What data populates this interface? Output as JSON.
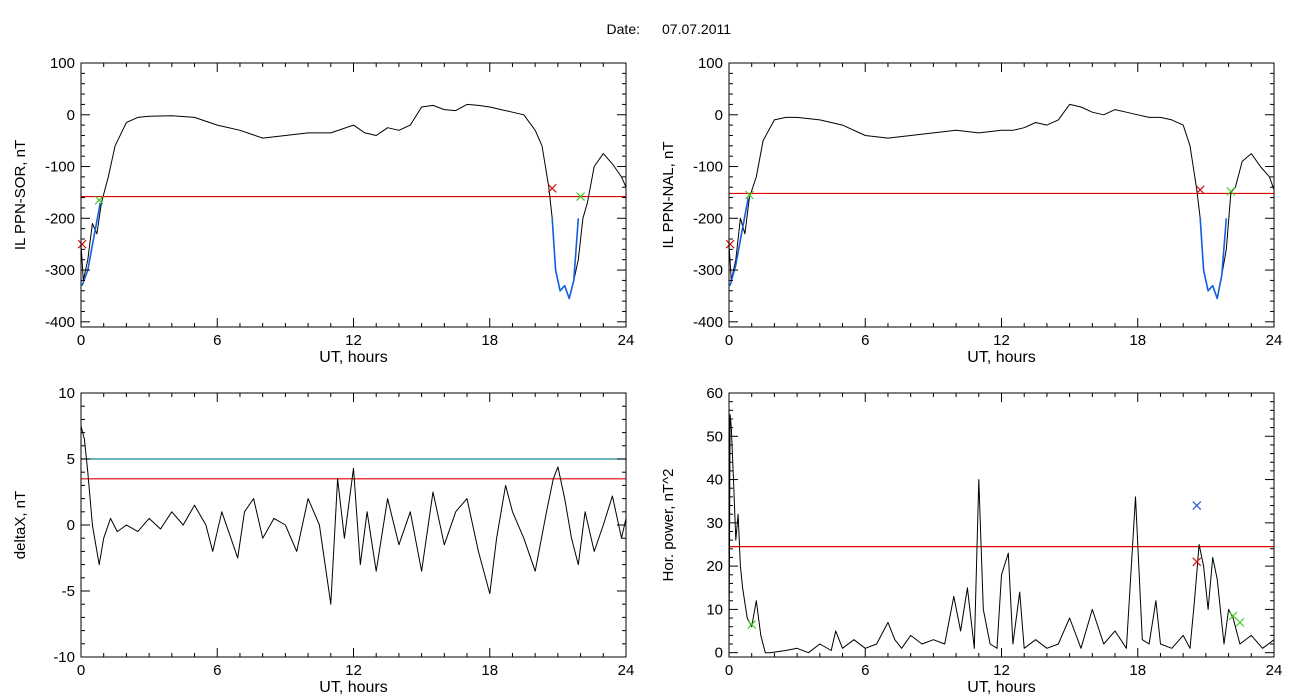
{
  "header": {
    "date_label": "Date:",
    "date_value": "07.07.2011"
  },
  "colors": {
    "trace": "#000000",
    "threshold": "#e00000",
    "teal_line": "#138a8a",
    "interval": "#1060e0",
    "marker_red": "#cc1111",
    "marker_green": "#44cc22",
    "marker_blue": "#2255dd"
  },
  "chart_data": [
    {
      "id": "top-left",
      "type": "line",
      "title": "",
      "xlabel": "UT, hours",
      "ylabel": "IL PPN-SOR, nT",
      "xlim": [
        0,
        24
      ],
      "ylim": [
        -410,
        100
      ],
      "xticks": [
        0,
        6,
        12,
        18,
        24
      ],
      "yticks": [
        -400,
        -300,
        -200,
        -100,
        0,
        100
      ],
      "grid": false,
      "series": [
        {
          "role": "trace",
          "x": [
            0,
            0.1,
            0.3,
            0.5,
            0.7,
            0.9,
            1.2,
            1.5,
            2.0,
            2.5,
            3.0,
            4.0,
            5.0,
            6.0,
            7.0,
            8.0,
            9.0,
            10.0,
            11.0,
            12.0,
            12.5,
            13.0,
            13.5,
            14.0,
            14.5,
            15.0,
            15.5,
            16.0,
            16.5,
            17.0,
            17.5,
            18.0,
            18.5,
            19.0,
            19.5,
            20.0,
            20.3,
            20.6,
            20.75,
            20.9,
            21.1,
            21.3,
            21.5,
            21.7,
            21.9,
            22.1,
            22.3,
            22.6,
            23.0,
            23.4,
            23.8,
            24.0
          ],
          "y": [
            -250,
            -320,
            -280,
            -210,
            -230,
            -170,
            -120,
            -60,
            -15,
            -5,
            -3,
            -2,
            -5,
            -20,
            -30,
            -45,
            -40,
            -35,
            -35,
            -20,
            -35,
            -40,
            -25,
            -30,
            -20,
            15,
            18,
            10,
            8,
            20,
            18,
            15,
            10,
            5,
            0,
            -30,
            -60,
            -140,
            -200,
            -300,
            -340,
            -330,
            -355,
            -320,
            -280,
            -200,
            -170,
            -100,
            -75,
            -95,
            -120,
            -140
          ]
        },
        {
          "role": "interval",
          "x": [
            0.05,
            0.3,
            0.55,
            0.85
          ],
          "y": [
            -330,
            -300,
            -240,
            -170
          ]
        },
        {
          "role": "interval",
          "x": [
            20.75,
            20.9,
            21.1,
            21.3,
            21.5,
            21.7,
            21.9
          ],
          "y": [
            -200,
            -300,
            -340,
            -330,
            -355,
            -320,
            -200
          ]
        }
      ],
      "hlines": [
        {
          "y": -158,
          "color": "#e00000"
        }
      ],
      "markers": [
        {
          "x": 0.8,
          "y": -165,
          "color": "#44cc22"
        },
        {
          "x": 20.75,
          "y": -142,
          "color": "#cc1111"
        },
        {
          "x": 22.0,
          "y": -158,
          "color": "#44cc22"
        },
        {
          "x": 0.05,
          "y": -250,
          "color": "#cc1111"
        }
      ]
    },
    {
      "id": "top-right",
      "type": "line",
      "title": "",
      "xlabel": "UT, hours",
      "ylabel": "IL PPN-NAL, nT",
      "xlim": [
        0,
        24
      ],
      "ylim": [
        -410,
        100
      ],
      "xticks": [
        0,
        6,
        12,
        18,
        24
      ],
      "yticks": [
        -400,
        -300,
        -200,
        -100,
        0,
        100
      ],
      "grid": false,
      "series": [
        {
          "role": "trace",
          "x": [
            0,
            0.1,
            0.3,
            0.5,
            0.7,
            0.9,
            1.2,
            1.5,
            2.0,
            2.5,
            3.0,
            4.0,
            5.0,
            6.0,
            7.0,
            8.0,
            9.0,
            10.0,
            11.0,
            12.0,
            12.5,
            13.0,
            13.5,
            14.0,
            14.5,
            15.0,
            15.5,
            16.0,
            16.5,
            17.0,
            17.5,
            18.0,
            18.5,
            19.0,
            19.5,
            20.0,
            20.3,
            20.6,
            20.75,
            20.9,
            21.1,
            21.3,
            21.5,
            21.7,
            21.9,
            22.1,
            22.3,
            22.6,
            23.0,
            23.4,
            23.8,
            24.0
          ],
          "y": [
            -250,
            -320,
            -280,
            -200,
            -230,
            -160,
            -120,
            -50,
            -10,
            -5,
            -5,
            -10,
            -20,
            -40,
            -45,
            -40,
            -35,
            -30,
            -35,
            -30,
            -30,
            -25,
            -15,
            -20,
            -10,
            20,
            15,
            5,
            0,
            10,
            5,
            0,
            -5,
            -5,
            -10,
            -20,
            -60,
            -145,
            -200,
            -300,
            -340,
            -330,
            -355,
            -310,
            -260,
            -150,
            -140,
            -90,
            -75,
            -100,
            -120,
            -145
          ]
        },
        {
          "role": "interval",
          "x": [
            0.05,
            0.3,
            0.55,
            0.85
          ],
          "y": [
            -330,
            -290,
            -230,
            -160
          ]
        },
        {
          "role": "interval",
          "x": [
            20.75,
            20.9,
            21.1,
            21.3,
            21.5,
            21.7,
            21.9
          ],
          "y": [
            -200,
            -300,
            -340,
            -330,
            -355,
            -310,
            -200
          ]
        }
      ],
      "hlines": [
        {
          "y": -152,
          "color": "#e00000"
        }
      ],
      "markers": [
        {
          "x": 0.9,
          "y": -155,
          "color": "#44cc22"
        },
        {
          "x": 20.75,
          "y": -145,
          "color": "#cc1111"
        },
        {
          "x": 22.1,
          "y": -148,
          "color": "#44cc22"
        },
        {
          "x": 0.05,
          "y": -250,
          "color": "#cc1111"
        }
      ]
    },
    {
      "id": "bottom-left",
      "type": "line",
      "title": "",
      "xlabel": "UT, hours",
      "ylabel": "deltaX, nT",
      "xlim": [
        0,
        24
      ],
      "ylim": [
        -10,
        10
      ],
      "xticks": [
        0,
        6,
        12,
        18,
        24
      ],
      "yticks": [
        -10,
        -5,
        0,
        5,
        10
      ],
      "grid": false,
      "series": [
        {
          "role": "trace",
          "x": [
            0,
            0.15,
            0.3,
            0.5,
            0.7,
            0.8,
            1.0,
            1.3,
            1.6,
            2.0,
            2.5,
            3.0,
            3.5,
            4.0,
            4.5,
            5.0,
            5.5,
            5.8,
            6.2,
            6.6,
            6.9,
            7.2,
            7.6,
            8.0,
            8.5,
            9.0,
            9.5,
            10.0,
            10.5,
            11.0,
            11.3,
            11.6,
            12.0,
            12.3,
            12.6,
            13.0,
            13.5,
            14.0,
            14.5,
            15.0,
            15.5,
            16.0,
            16.5,
            17.0,
            17.5,
            18.0,
            18.3,
            18.7,
            19.0,
            19.5,
            20.0,
            20.5,
            20.8,
            21.0,
            21.3,
            21.6,
            21.9,
            22.2,
            22.6,
            23.0,
            23.4,
            23.8,
            24.0
          ],
          "y": [
            7.5,
            6.5,
            4.0,
            0.0,
            -2.0,
            -3.0,
            -1.0,
            0.5,
            -0.5,
            0.0,
            -0.5,
            0.5,
            -0.3,
            1.0,
            0.0,
            1.5,
            0.0,
            -2.0,
            1.0,
            -1.0,
            -2.5,
            1.0,
            2.0,
            -1.0,
            0.5,
            0.0,
            -2.0,
            2.0,
            0.0,
            -6.0,
            3.5,
            -1.0,
            4.3,
            -3.0,
            1.0,
            -3.5,
            2.0,
            -1.5,
            1.0,
            -3.5,
            2.5,
            -1.5,
            1.0,
            2.0,
            -2.0,
            -5.2,
            -1.0,
            3.0,
            1.0,
            -1.0,
            -3.5,
            1.0,
            3.5,
            4.4,
            2.0,
            -1.0,
            -3.0,
            1.0,
            -2.0,
            0.0,
            2.2,
            -1.0,
            0.5
          ]
        }
      ],
      "hlines": [
        {
          "y": 5.0,
          "color": "#138a8a"
        },
        {
          "y": 3.5,
          "color": "#e00000"
        }
      ],
      "markers": []
    },
    {
      "id": "bottom-right",
      "type": "line",
      "title": "",
      "xlabel": "UT, hours",
      "ylabel": "Hor. power, nT^2",
      "xlim": [
        0,
        24
      ],
      "ylim": [
        -1,
        60
      ],
      "xticks": [
        0,
        6,
        12,
        18,
        24
      ],
      "yticks": [
        0,
        10,
        20,
        30,
        40,
        50,
        60
      ],
      "grid": false,
      "series": [
        {
          "role": "trace",
          "x": [
            0,
            0.05,
            0.1,
            0.2,
            0.3,
            0.4,
            0.5,
            0.6,
            0.8,
            1.0,
            1.2,
            1.4,
            1.6,
            1.8,
            2.5,
            3.0,
            3.5,
            4.0,
            4.5,
            4.7,
            5.0,
            5.5,
            6.0,
            6.5,
            7.0,
            7.3,
            7.6,
            8.0,
            8.5,
            9.0,
            9.5,
            9.9,
            10.2,
            10.5,
            10.8,
            11.0,
            11.2,
            11.5,
            11.8,
            12.0,
            12.3,
            12.5,
            12.8,
            13.0,
            13.5,
            14.0,
            14.5,
            15.0,
            15.5,
            16.0,
            16.5,
            17.0,
            17.5,
            17.9,
            18.2,
            18.5,
            18.8,
            19.0,
            19.5,
            20.0,
            20.3,
            20.5,
            20.7,
            20.9,
            21.1,
            21.3,
            21.5,
            21.8,
            22.0,
            22.2,
            22.5,
            23.0,
            23.5,
            24.0
          ],
          "y": [
            0,
            55,
            52,
            40,
            26,
            32,
            20,
            15,
            8,
            6,
            12,
            4,
            0,
            0,
            0.5,
            1,
            0,
            2,
            0.5,
            5,
            1,
            3,
            1,
            2,
            7,
            3,
            1,
            4,
            2,
            3,
            2,
            13,
            5,
            15,
            1,
            40,
            10,
            2,
            1,
            18,
            23,
            2,
            14,
            1,
            3,
            1,
            2,
            8,
            1,
            10,
            2,
            5,
            1,
            36,
            3,
            2,
            12,
            2,
            1,
            4,
            1,
            12,
            25,
            20,
            10,
            22,
            17,
            2,
            10,
            8,
            2,
            4,
            1,
            3
          ]
        }
      ],
      "hlines": [
        {
          "y": 24.5,
          "color": "#e00000"
        }
      ],
      "markers": [
        {
          "x": 1.0,
          "y": 6.5,
          "color": "#44cc22"
        },
        {
          "x": 20.6,
          "y": 34.0,
          "color": "#2255dd"
        },
        {
          "x": 20.6,
          "y": 21.0,
          "color": "#cc1111"
        },
        {
          "x": 22.2,
          "y": 8.5,
          "color": "#44cc22"
        },
        {
          "x": 22.5,
          "y": 7.0,
          "color": "#44cc22"
        }
      ]
    }
  ]
}
